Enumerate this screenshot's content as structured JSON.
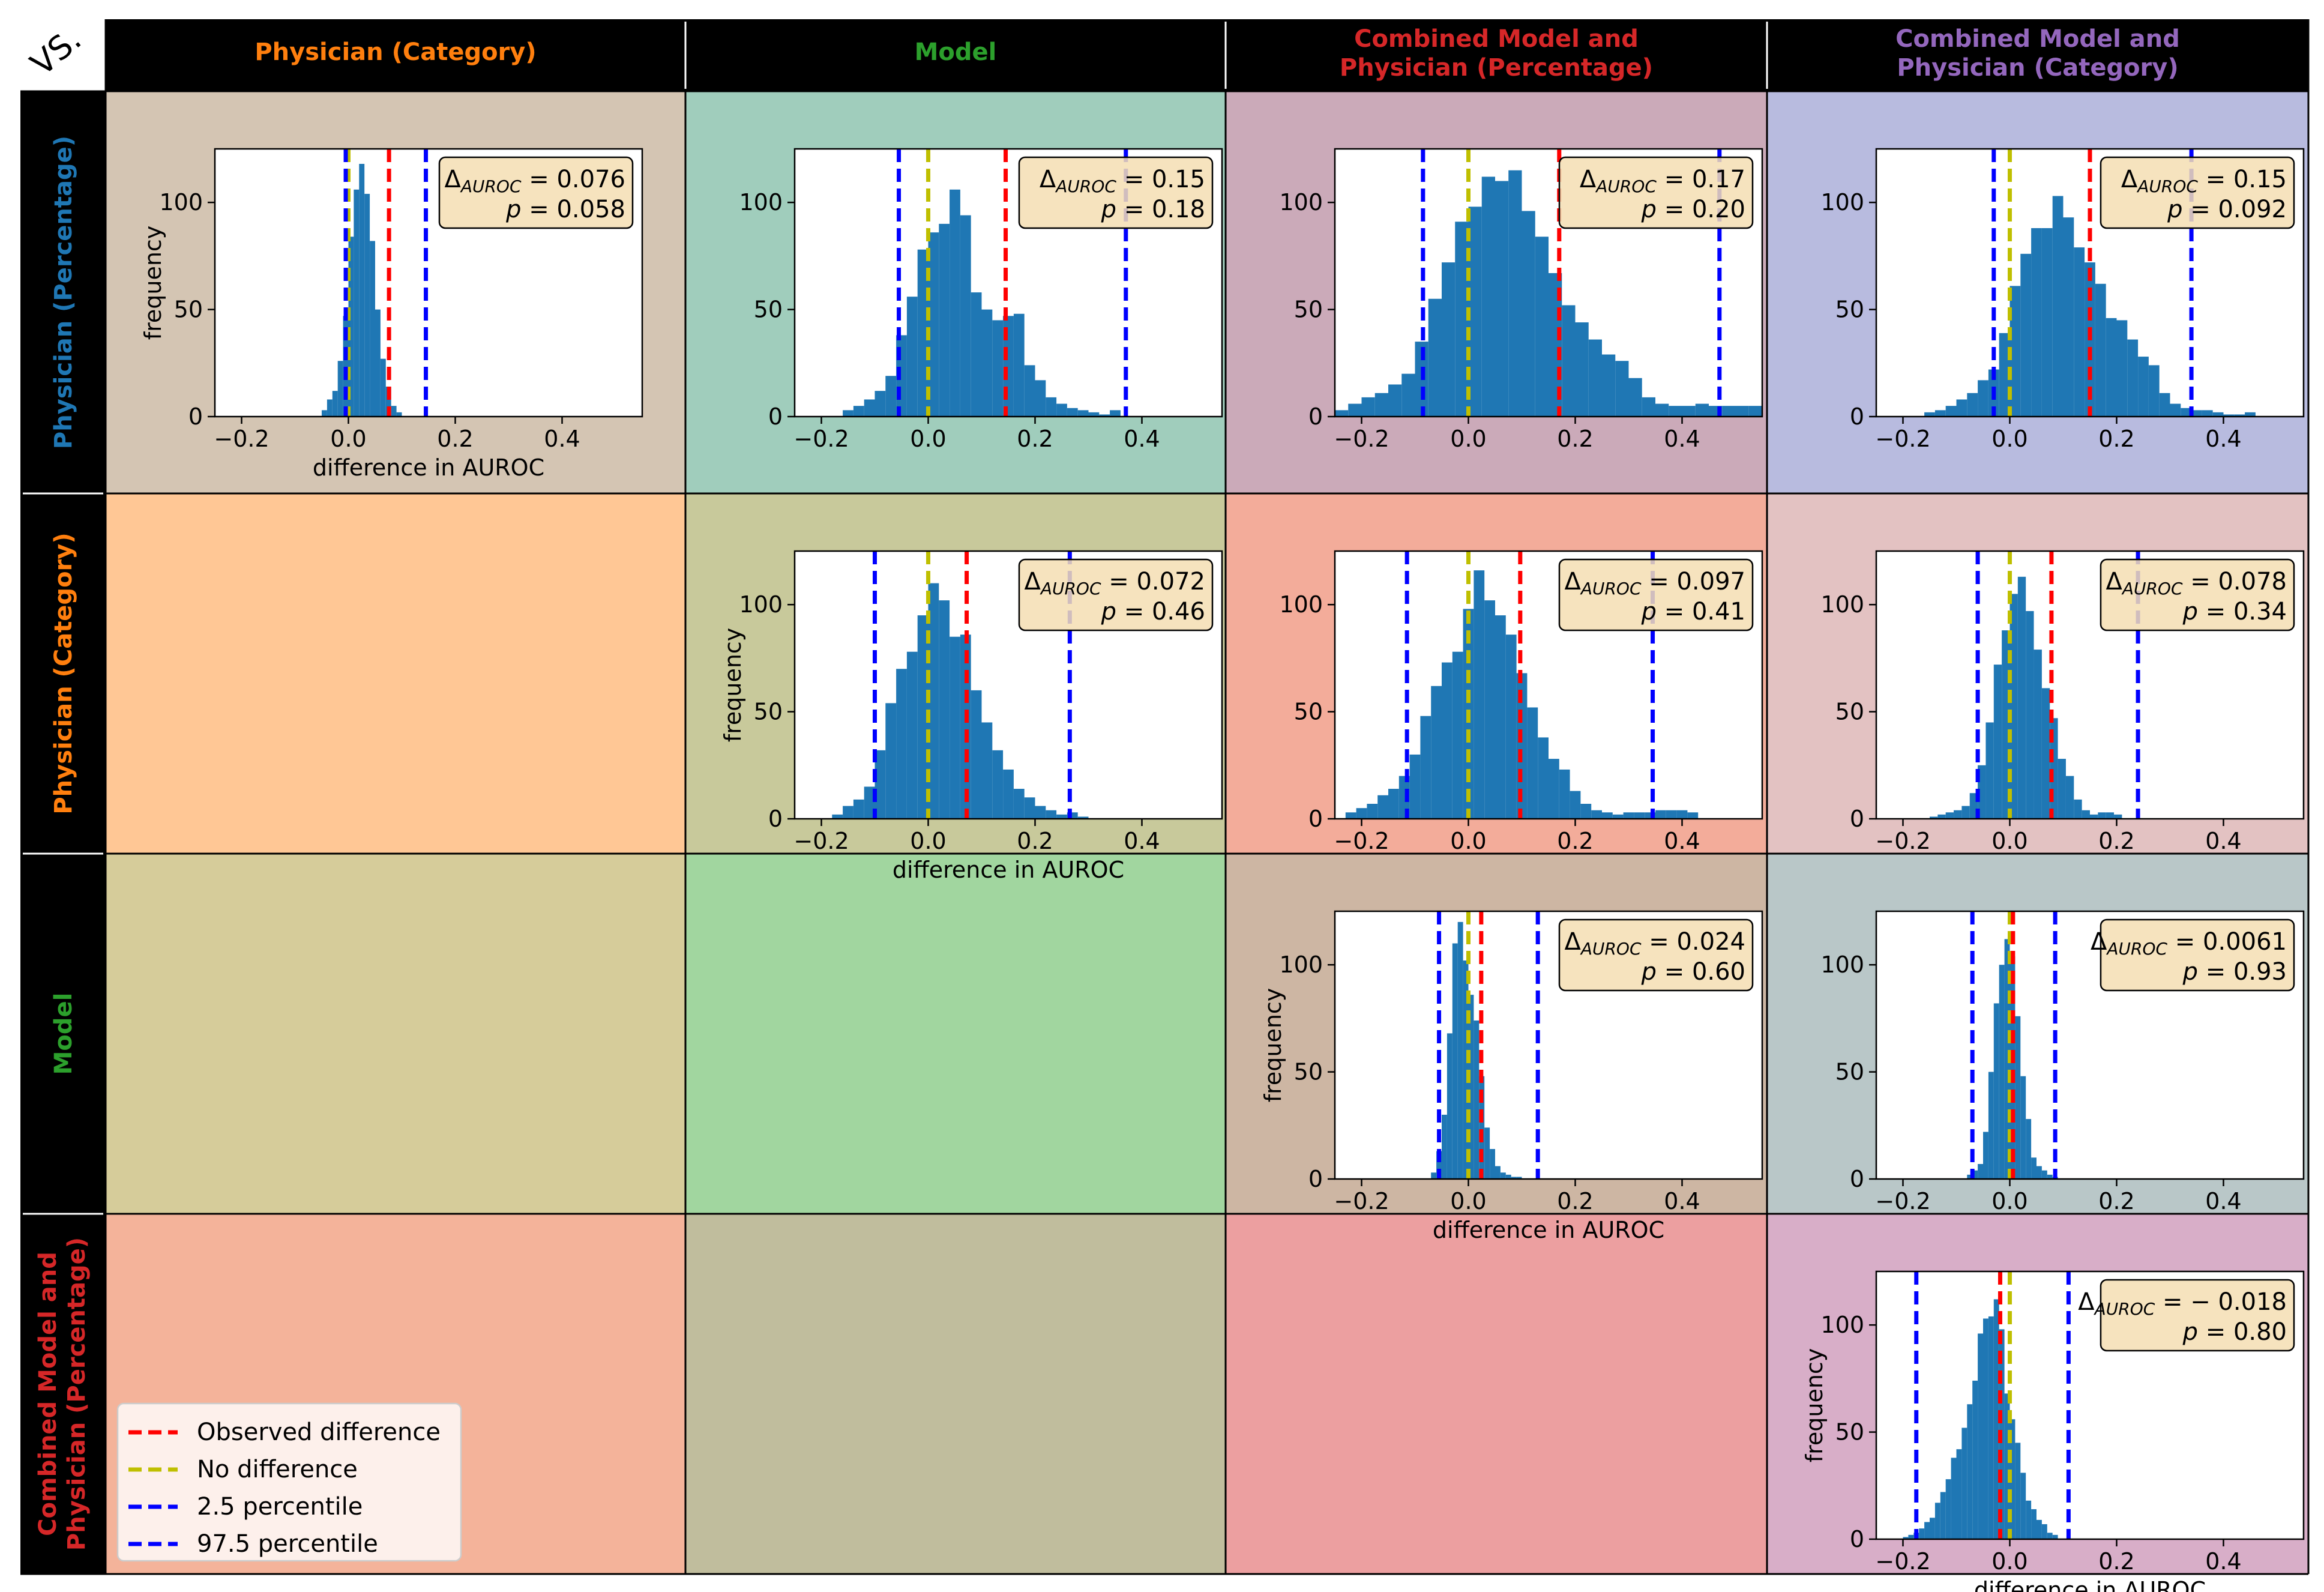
{
  "corner_label": "VS.",
  "column_headers": [
    {
      "text": "Physician (Category)",
      "color": "#ff7f0e"
    },
    {
      "text": "Model",
      "color": "#2ca02c"
    },
    {
      "text": "Combined Model and\nPhysician (Percentage)",
      "color": "#d62728"
    },
    {
      "text": "Combined Model and\nPhysician (Category)",
      "color": "#9467bd"
    }
  ],
  "row_headers": [
    {
      "text": "Physician (Percentage)",
      "color": "#1f77b4"
    },
    {
      "text": "Physician (Category)",
      "color": "#ff7f0e"
    },
    {
      "text": "Model",
      "color": "#2ca02c"
    },
    {
      "text": "Combined Model and\nPhysician (Percentage)",
      "color": "#d62728"
    }
  ],
  "cell_colors": [
    [
      "#d4c5b3",
      "#a0cdbc",
      "#cbaab9",
      "#b8bbdf"
    ],
    [
      "#ffc795",
      "#c8c99b",
      "#f3ac9a",
      "#e3c2c2"
    ],
    [
      "#d6cc9a",
      "#a1d69f",
      "#cdb6a3",
      "#b9c7c8"
    ],
    [
      "#f4b39a",
      "#c0bd9d",
      "#ec9fa0",
      "#d8aec8"
    ]
  ],
  "legend": {
    "entries": [
      {
        "label": "Observed difference",
        "color": "#ff0000"
      },
      {
        "label": "No difference",
        "color": "#bfbf00"
      },
      {
        "label": "2.5 percentile",
        "color": "#0000ff"
      },
      {
        "label": "97.5 percentile",
        "color": "#0000ff"
      }
    ]
  },
  "chart_data": [
    {
      "type": "bar",
      "row": 0,
      "col": 0,
      "xlabel": "difference in AUROC",
      "ylabel": "frequency",
      "xlim": [
        -0.25,
        0.55
      ],
      "ylim": [
        0,
        125
      ],
      "xticks": [
        -0.2,
        0.0,
        0.2,
        0.4
      ],
      "yticks": [
        0,
        50,
        100
      ],
      "xtick_labels": [
        "−0.2",
        "0.0",
        "0.2",
        "0.4"
      ],
      "ytick_labels": [
        "0",
        "50",
        "100"
      ],
      "bin_start": -0.05,
      "bin_width": 0.01,
      "counts": [
        3,
        8,
        12,
        26,
        47,
        84,
        106,
        118,
        104,
        82,
        50,
        27,
        14,
        5,
        2
      ],
      "observed": 0.076,
      "no_difference": 0.0,
      "p2_5": -0.005,
      "p97_5": 0.145,
      "annotation": {
        "delta": "0.076",
        "p": "0.058"
      }
    },
    {
      "type": "bar",
      "row": 0,
      "col": 1,
      "xlabel": "",
      "ylabel": "",
      "xlim": [
        -0.25,
        0.55
      ],
      "ylim": [
        0,
        125
      ],
      "xticks": [
        -0.2,
        0.0,
        0.2,
        0.4
      ],
      "yticks": [
        0,
        50,
        100
      ],
      "xtick_labels": [
        "−0.2",
        "0.0",
        "0.2",
        "0.4"
      ],
      "ytick_labels": [
        "0",
        "50",
        "100"
      ],
      "bin_start": -0.16,
      "bin_width": 0.02,
      "counts": [
        3,
        5,
        8,
        12,
        19,
        38,
        56,
        78,
        86,
        90,
        106,
        94,
        58,
        50,
        45,
        47,
        48,
        24,
        17,
        9,
        6,
        4,
        3,
        2,
        1,
        3
      ],
      "observed": 0.145,
      "no_difference": 0.0,
      "p2_5": -0.055,
      "p97_5": 0.37,
      "annotation": {
        "delta": "0.15",
        "p": "0.18"
      }
    },
    {
      "type": "bar",
      "row": 0,
      "col": 2,
      "xlabel": "",
      "ylabel": "",
      "xlim": [
        -0.25,
        0.55
      ],
      "ylim": [
        0,
        125
      ],
      "xticks": [
        -0.2,
        0.0,
        0.2,
        0.4
      ],
      "yticks": [
        0,
        50,
        100
      ],
      "xtick_labels": [
        "−0.2",
        "0.0",
        "0.2",
        "0.4"
      ],
      "ytick_labels": [
        "0",
        "50",
        "100"
      ],
      "bin_start": -0.25,
      "bin_width": 0.025,
      "counts": [
        3,
        6,
        9,
        11,
        15,
        20,
        35,
        55,
        72,
        91,
        98,
        112,
        110,
        115,
        96,
        84,
        67,
        52,
        44,
        36,
        29,
        26,
        18,
        9,
        6,
        5,
        5,
        6,
        5,
        5,
        5,
        5
      ],
      "observed": 0.17,
      "no_difference": 0.0,
      "p2_5": -0.085,
      "p97_5": 0.47,
      "annotation": {
        "delta": "0.17",
        "p": "0.20"
      }
    },
    {
      "type": "bar",
      "row": 0,
      "col": 3,
      "xlabel": "",
      "ylabel": "",
      "xlim": [
        -0.25,
        0.55
      ],
      "ylim": [
        0,
        125
      ],
      "xticks": [
        -0.2,
        0.0,
        0.2,
        0.4
      ],
      "yticks": [
        0,
        50,
        100
      ],
      "xtick_labels": [
        "−0.2",
        "0.0",
        "0.2",
        "0.4"
      ],
      "ytick_labels": [
        "0",
        "50",
        "100"
      ],
      "bin_start": -0.16,
      "bin_width": 0.02,
      "counts": [
        2,
        3,
        5,
        8,
        11,
        17,
        22,
        39,
        61,
        76,
        88,
        88,
        103,
        93,
        79,
        72,
        62,
        46,
        45,
        36,
        28,
        24,
        11,
        6,
        4,
        3,
        3,
        2,
        1,
        1,
        2
      ],
      "observed": 0.15,
      "no_difference": 0.0,
      "p2_5": -0.03,
      "p97_5": 0.34,
      "annotation": {
        "delta": "0.15",
        "p": "0.092"
      }
    },
    {
      "type": "bar",
      "row": 1,
      "col": 1,
      "xlabel": "difference in AUROC",
      "ylabel": "frequency",
      "xlim": [
        -0.25,
        0.55
      ],
      "ylim": [
        0,
        125
      ],
      "xticks": [
        -0.2,
        0.0,
        0.2,
        0.4
      ],
      "yticks": [
        0,
        50,
        100
      ],
      "xtick_labels": [
        "−0.2",
        "0.0",
        "0.2",
        "0.4"
      ],
      "ytick_labels": [
        "0",
        "50",
        "100"
      ],
      "bin_start": -0.18,
      "bin_width": 0.02,
      "counts": [
        2,
        6,
        9,
        15,
        32,
        54,
        70,
        78,
        95,
        110,
        102,
        85,
        86,
        60,
        45,
        32,
        23,
        14,
        10,
        6,
        4,
        2,
        3,
        1
      ],
      "observed": 0.072,
      "no_difference": 0.0,
      "p2_5": -0.1,
      "p97_5": 0.265,
      "annotation": {
        "delta": "0.072",
        "p": "0.46"
      }
    },
    {
      "type": "bar",
      "row": 1,
      "col": 2,
      "xlabel": "",
      "ylabel": "",
      "xlim": [
        -0.25,
        0.55
      ],
      "ylim": [
        0,
        125
      ],
      "xticks": [
        -0.2,
        0.0,
        0.2,
        0.4
      ],
      "yticks": [
        0,
        50,
        100
      ],
      "xtick_labels": [
        "−0.2",
        "0.0",
        "0.2",
        "0.4"
      ],
      "ytick_labels": [
        "0",
        "50",
        "100"
      ],
      "bin_start": -0.23,
      "bin_width": 0.02,
      "counts": [
        3,
        5,
        7,
        11,
        14,
        20,
        30,
        48,
        62,
        73,
        78,
        98,
        116,
        102,
        95,
        86,
        68,
        52,
        38,
        28,
        23,
        13,
        7,
        4,
        3,
        2,
        3,
        3,
        3,
        4,
        4,
        4,
        3
      ],
      "observed": 0.097,
      "no_difference": 0.0,
      "p2_5": -0.115,
      "p97_5": 0.345,
      "annotation": {
        "delta": "0.097",
        "p": "0.41"
      }
    },
    {
      "type": "bar",
      "row": 1,
      "col": 3,
      "xlabel": "",
      "ylabel": "",
      "xlim": [
        -0.25,
        0.55
      ],
      "ylim": [
        0,
        125
      ],
      "xticks": [
        -0.2,
        0.0,
        0.2,
        0.4
      ],
      "yticks": [
        0,
        50,
        100
      ],
      "xtick_labels": [
        "−0.2",
        "0.0",
        "0.2",
        "0.4"
      ],
      "ytick_labels": [
        "0",
        "50",
        "100"
      ],
      "bin_start": -0.15,
      "bin_width": 0.015,
      "counts": [
        1,
        2,
        3,
        4,
        6,
        12,
        25,
        45,
        72,
        88,
        105,
        113,
        97,
        79,
        61,
        47,
        28,
        20,
        9,
        4,
        2,
        3,
        3,
        2
      ],
      "observed": 0.078,
      "no_difference": 0.0,
      "p2_5": -0.06,
      "p97_5": 0.24,
      "annotation": {
        "delta": "0.078",
        "p": "0.34"
      }
    },
    {
      "type": "bar",
      "row": 2,
      "col": 2,
      "xlabel": "difference in AUROC",
      "ylabel": "frequency",
      "xlim": [
        -0.25,
        0.55
      ],
      "ylim": [
        0,
        125
      ],
      "xticks": [
        -0.2,
        0.0,
        0.2,
        0.4
      ],
      "yticks": [
        0,
        50,
        100
      ],
      "xtick_labels": [
        "−0.2",
        "0.0",
        "0.2",
        "0.4"
      ],
      "ytick_labels": [
        "0",
        "50",
        "100"
      ],
      "bin_start": -0.07,
      "bin_width": 0.01,
      "counts": [
        3,
        13,
        30,
        68,
        110,
        120,
        102,
        86,
        74,
        48,
        24,
        14,
        6,
        3,
        2,
        1,
        1
      ],
      "observed": 0.024,
      "no_difference": 0.0,
      "p2_5": -0.055,
      "p97_5": 0.13,
      "annotation": {
        "delta": "0.024",
        "p": "0.60"
      }
    },
    {
      "type": "bar",
      "row": 2,
      "col": 3,
      "xlabel": "",
      "ylabel": "",
      "xlim": [
        -0.25,
        0.55
      ],
      "ylim": [
        0,
        125
      ],
      "xticks": [
        -0.2,
        0.0,
        0.2,
        0.4
      ],
      "yticks": [
        0,
        50,
        100
      ],
      "xtick_labels": [
        "−0.2",
        "0.0",
        "0.2",
        "0.4"
      ],
      "ytick_labels": [
        "0",
        "50",
        "100"
      ],
      "bin_start": -0.08,
      "bin_width": 0.01,
      "counts": [
        2,
        4,
        7,
        22,
        50,
        82,
        100,
        112,
        104,
        76,
        48,
        28,
        10,
        6,
        4,
        2,
        1
      ],
      "observed": 0.006,
      "no_difference": 0.0,
      "p2_5": -0.07,
      "p97_5": 0.085,
      "annotation": {
        "delta": "0.0061",
        "p": "0.93"
      }
    },
    {
      "type": "bar",
      "row": 3,
      "col": 3,
      "xlabel": "difference in AUROC",
      "ylabel": "frequency",
      "xlim": [
        -0.25,
        0.55
      ],
      "ylim": [
        0,
        125
      ],
      "xticks": [
        -0.2,
        0.0,
        0.2,
        0.4
      ],
      "yticks": [
        0,
        50,
        100
      ],
      "xtick_labels": [
        "−0.2",
        "0.0",
        "0.2",
        "0.4"
      ],
      "ytick_labels": [
        "0",
        "50",
        "100"
      ],
      "bin_start": -0.2,
      "bin_width": 0.01,
      "counts": [
        1,
        2,
        3,
        5,
        8,
        10,
        17,
        22,
        28,
        38,
        42,
        52,
        63,
        74,
        96,
        103,
        104,
        112,
        98,
        68,
        56,
        45,
        31,
        18,
        14,
        9,
        7,
        3,
        2
      ],
      "observed": -0.018,
      "no_difference": 0.0,
      "p2_5": -0.175,
      "p97_5": 0.11,
      "annotation": {
        "delta": "− 0.018",
        "p": "0.80"
      }
    }
  ]
}
